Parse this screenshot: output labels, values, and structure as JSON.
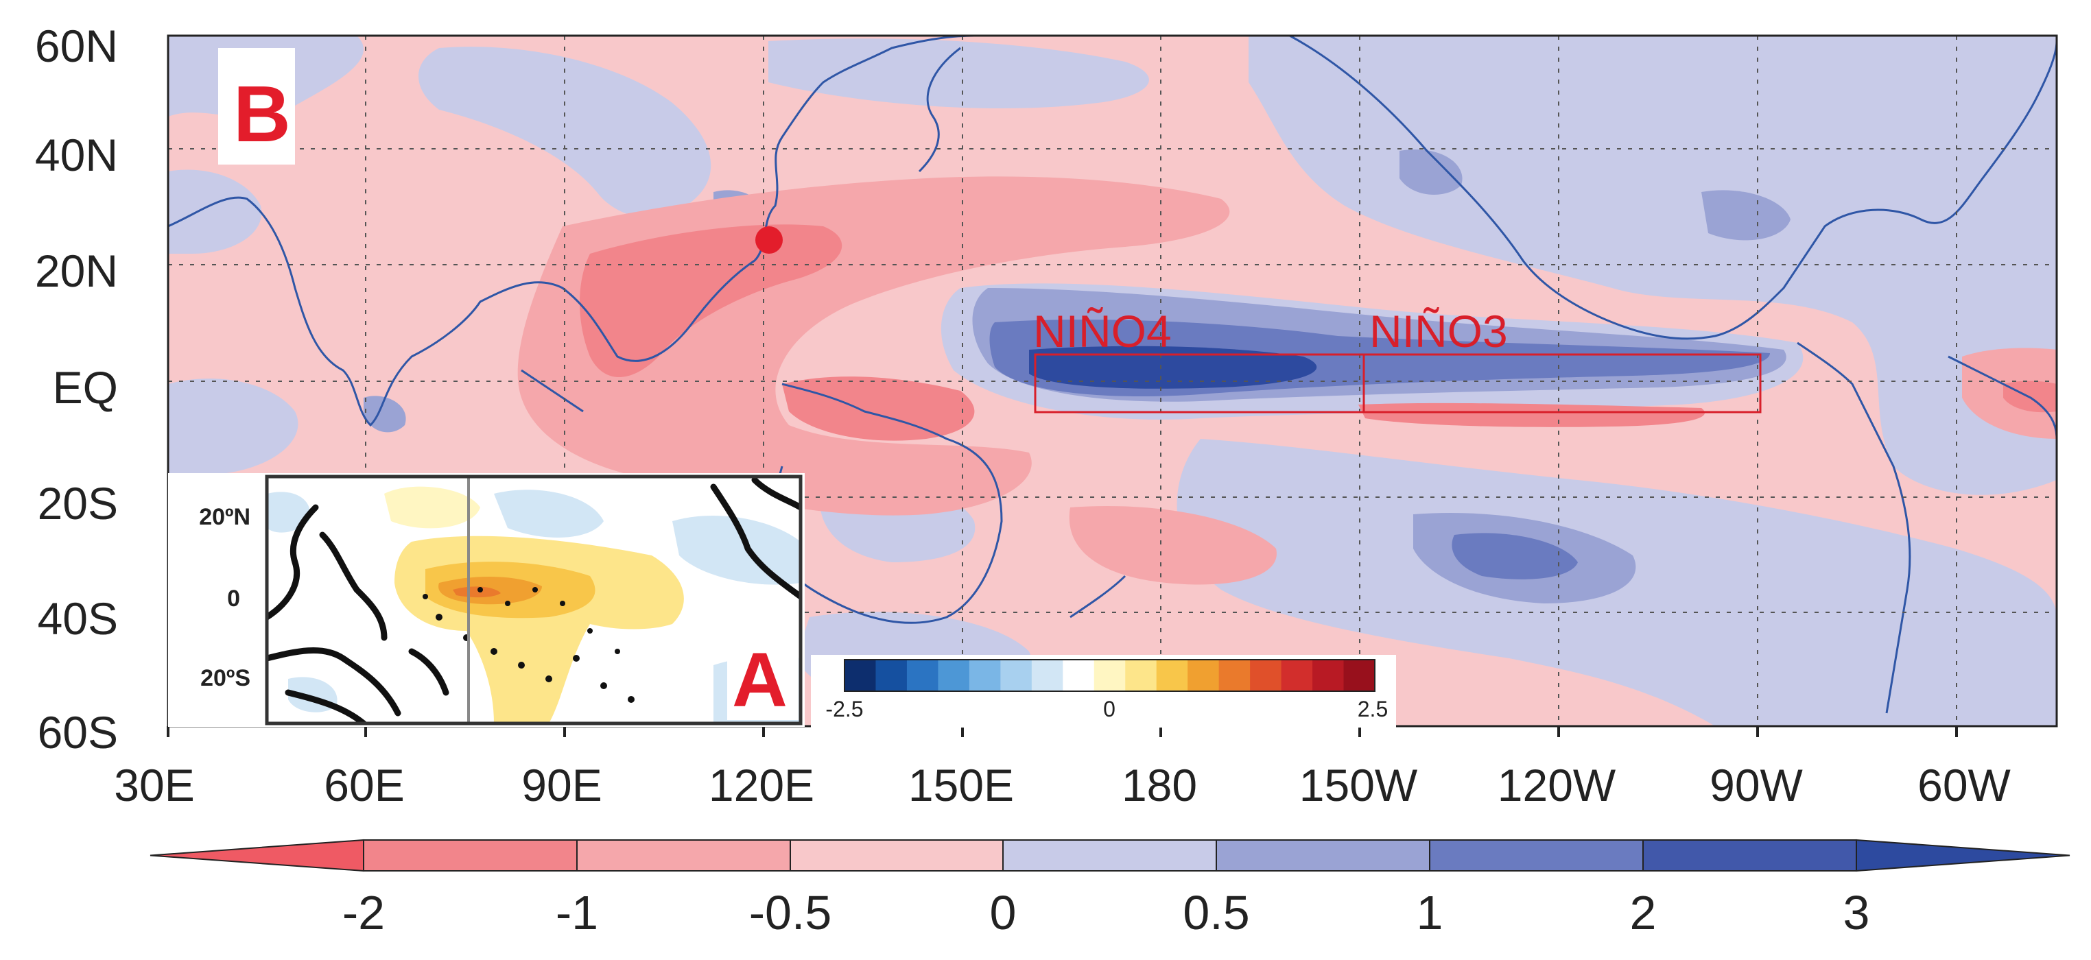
{
  "panel_b": {
    "label": "B",
    "lat_labels": [
      "60N",
      "40N",
      "20N",
      "EQ",
      "20S",
      "40S",
      "60S"
    ],
    "lon_labels": [
      "30E",
      "60E",
      "90E",
      "120E",
      "150E",
      "180",
      "150W",
      "120W",
      "90W",
      "60W"
    ],
    "regions": [
      {
        "name": "NIÑO4",
        "lon_range": "160E-150W",
        "lat_range": "5N-5S"
      },
      {
        "name": "NIÑO3",
        "lon_range": "150W-90W",
        "lat_range": "5N-5S"
      }
    ],
    "marker": {
      "description": "red dot",
      "lon": "121E",
      "lat": "25N"
    },
    "colors": {
      "negative": "#ee6b73",
      "positive": "#4057a7",
      "region_box": "#d81f2a",
      "coastline": "#2f56a6"
    }
  },
  "main_colorbar": {
    "ticks": [
      "-2",
      "-1",
      "-0.5",
      "0",
      "0.5",
      "1",
      "2",
      "3"
    ],
    "colors": [
      "#ef5a64",
      "#f2858b",
      "#f5a7ab",
      "#f8c8ca",
      "#c8cbe8",
      "#9aa3d4",
      "#6a7bc0",
      "#4158aa",
      "#2d4a9f"
    ]
  },
  "panel_a": {
    "label": "A",
    "lat_labels": [
      "20ºN",
      "0",
      "20ºS"
    ]
  },
  "inset_colorbar": {
    "ticks": [
      "-2.5",
      "0",
      "2.5"
    ],
    "colors": [
      "#0d2e6e",
      "#1550a0",
      "#2b74c2",
      "#4d97d6",
      "#7ab6e6",
      "#a8d0ef",
      "#d2e6f5",
      "#ffffff",
      "#fff6c2",
      "#fde58a",
      "#f8c64a",
      "#f0a030",
      "#ea7a2c",
      "#e0502a",
      "#d22e2c",
      "#b81a24",
      "#98101c"
    ]
  }
}
